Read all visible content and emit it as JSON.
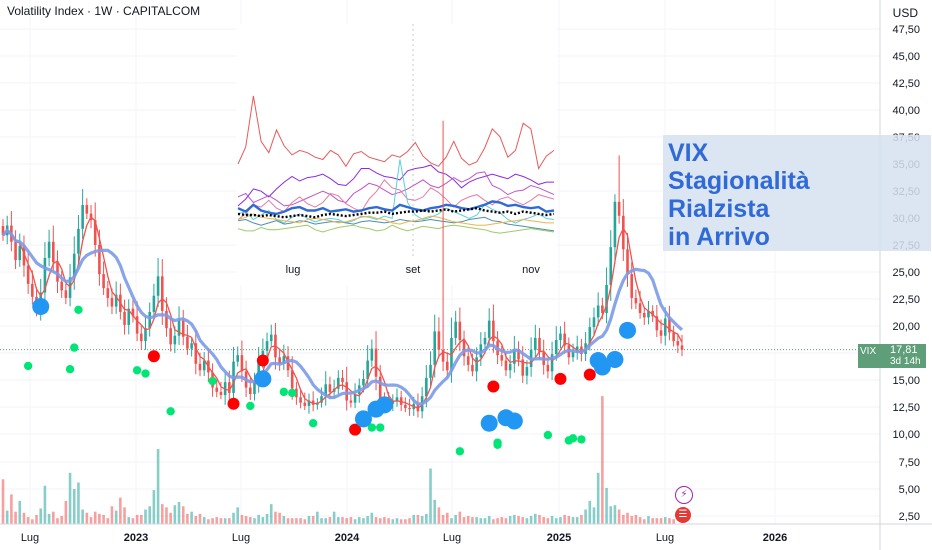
{
  "header": {
    "title": "Volatility Index · 1W · CAPITALCOM",
    "currency": "USD"
  },
  "overlay": {
    "title_lines": [
      "VIX",
      "Stagionalità",
      "Rialzista",
      "in Arrivo"
    ]
  },
  "price_tag": {
    "symbol": "VIX",
    "value": "17,81",
    "countdown": "3d 14h"
  },
  "icons": {
    "event": "lightning-icon",
    "flag": "us-flag-icon"
  },
  "colors": {
    "up": "#26a69a",
    "down": "#ef5350",
    "ma_fast": "#ef5350",
    "ma_slow": "#7b9be8",
    "green_dot": "#00e676",
    "red_dot": "#ff0000",
    "blue_dot": "#2196f3"
  },
  "chart_data": {
    "type": "candlestick",
    "y_ticks": [
      "47,50",
      "45,00",
      "42,50",
      "40,00",
      "37,50",
      "35,00",
      "32,50",
      "30,00",
      "27,50",
      "25,00",
      "22,50",
      "20,00",
      "17,50",
      "15,00",
      "12,50",
      "10,00",
      "7,50",
      "5,00",
      "2,50"
    ],
    "x_ticks": [
      {
        "label": "Lug",
        "bold": false
      },
      {
        "label": "2023",
        "bold": true
      },
      {
        "label": "Lug",
        "bold": false
      },
      {
        "label": "2024",
        "bold": true
      },
      {
        "label": "Lug",
        "bold": false
      },
      {
        "label": "2025",
        "bold": true
      },
      {
        "label": "Lug",
        "bold": false
      },
      {
        "label": "2026",
        "bold": true
      }
    ],
    "ylim": [
      1.5,
      48
    ],
    "last_price": 17.81,
    "closes": [
      28.4,
      29.3,
      27.8,
      26.1,
      27.4,
      25.6,
      23.9,
      22.7,
      21.5,
      23.1,
      26.3,
      27.8,
      25.9,
      24.1,
      23.3,
      22.6,
      24.5,
      26.7,
      29.0,
      31.2,
      30.4,
      29.8,
      27.5,
      24.8,
      23.5,
      22.6,
      21.8,
      22.9,
      21.3,
      20.1,
      21.6,
      20.9,
      19.3,
      18.6,
      19.8,
      21.3,
      22.8,
      24.6,
      21.4,
      19.8,
      18.3,
      19.1,
      20.5,
      19.0,
      17.9,
      18.4,
      16.5,
      15.9,
      16.8,
      15.7,
      14.3,
      13.9,
      13.6,
      14.8,
      13.8,
      16.7,
      17.3,
      15.8,
      14.3,
      13.7,
      14.9,
      16.8,
      17.7,
      18.6,
      19.2,
      17.1,
      16.5,
      17.2,
      15.9,
      14.2,
      13.4,
      12.9,
      12.6,
      13.1,
      12.7,
      12.9,
      13.5,
      14.6,
      13.9,
      14.2,
      15.2,
      14.8,
      13.1,
      12.9,
      13.7,
      14.5,
      15.1,
      16.8,
      17.9,
      15.3,
      13.2,
      13.0,
      12.8,
      13.1,
      13.4,
      12.7,
      12.4,
      12.3,
      12.8,
      12.1,
      13.5,
      15.2,
      16.4,
      19.5,
      17.8,
      16.7,
      15.9,
      18.9,
      20.4,
      18.7,
      17.2,
      16.4,
      15.8,
      17.1,
      18.3,
      18.9,
      20.5,
      18.6,
      17.3,
      16.8,
      15.9,
      16.5,
      17.8,
      16.9,
      15.4,
      16.2,
      17.8,
      18.9,
      17.6,
      16.4,
      15.8,
      17.4,
      18.7,
      19.3,
      18.2,
      17.1,
      17.6,
      18.1,
      17.4,
      18.4,
      19.9,
      20.8,
      21.9,
      21.2,
      23.8,
      27.3,
      31.5,
      30.2,
      27.1,
      24.8,
      22.6,
      22.1,
      21.2,
      20.8,
      21.4,
      20.9,
      19.6,
      19.1,
      20.7,
      19.4,
      18.6,
      18.2,
      17.81
    ],
    "volume": [
      5.9,
      3.0,
      4.5,
      2.9,
      3.9,
      2.8,
      2.4,
      2.2,
      2.6,
      3.2,
      5.3,
      2.7,
      2.9,
      2.3,
      2.5,
      3.9,
      6.5,
      5.0,
      5.6,
      3.1,
      2.8,
      2.4,
      2.9,
      2.7,
      2.6,
      2.3,
      3.4,
      3.0,
      4.2,
      3.3,
      2.4,
      2.3,
      2.6,
      2.6,
      3.1,
      3.4,
      4.9,
      8.7,
      3.6,
      3.3,
      2.8,
      3.5,
      3.8,
      3.4,
      2.7,
      2.9,
      2.5,
      2.7,
      2.4,
      2.2,
      2.3,
      2.4,
      2.3,
      2.3,
      2.3,
      2.8,
      3.3,
      2.6,
      2.5,
      2.4,
      2.3,
      2.6,
      2.4,
      2.7,
      3.6,
      2.9,
      2.8,
      2.5,
      2.3,
      2.3,
      2.3,
      2.3,
      2.2,
      2.5,
      2.5,
      2.9,
      2.3,
      2.3,
      2.4,
      2.9,
      2.4,
      2.4,
      2.3,
      2.4,
      2.2,
      2.4,
      2.3,
      2.5,
      2.8,
      2.4,
      2.3,
      2.4,
      2.3,
      2.2,
      2.3,
      2.2,
      2.2,
      2.3,
      2.6,
      2.6,
      2.5,
      2.7,
      6.9,
      4.0,
      3.3,
      2.6,
      2.8,
      2.3,
      2.6,
      2.9,
      2.4,
      2.5,
      2.4,
      2.4,
      2.3,
      2.3,
      2.5,
      2.2,
      2.3,
      2.4,
      2.3,
      2.5,
      2.6,
      2.5,
      2.4,
      2.3,
      2.5,
      2.7,
      2.6,
      2.4,
      2.3,
      2.5,
      2.3,
      2.4,
      2.6,
      2.5,
      2.4,
      2.4,
      2.6,
      3.1,
      3.9,
      3.3,
      6.5,
      13.6,
      5.1,
      3.4,
      3.5,
      3.1,
      2.6,
      2.8,
      2.5,
      2.6,
      2.4,
      2.2,
      2.5,
      2.3,
      2.3,
      2.3,
      2.4,
      2.3,
      2.2
    ],
    "green_dots": [
      [
        6,
        16.3
      ],
      [
        16,
        16.0
      ],
      [
        17,
        18.0
      ],
      [
        18,
        21.5
      ],
      [
        32,
        15.9
      ],
      [
        34,
        15.6
      ],
      [
        40,
        12.1
      ],
      [
        50,
        14.9
      ],
      [
        59,
        12.6
      ],
      [
        67,
        13.9
      ],
      [
        69,
        13.8
      ],
      [
        74,
        11.0
      ],
      [
        88,
        10.6
      ],
      [
        90,
        10.6
      ],
      [
        109,
        8.4
      ],
      [
        118,
        9.2
      ],
      [
        118,
        9.0
      ],
      [
        130,
        9.9
      ],
      [
        135,
        9.4
      ],
      [
        136,
        9.6
      ],
      [
        138,
        9.5
      ]
    ],
    "red_dots": [
      [
        36,
        17.2
      ],
      [
        55,
        12.8
      ],
      [
        62,
        16.8
      ],
      [
        84,
        10.4
      ],
      [
        117,
        14.4
      ],
      [
        133,
        15.1
      ],
      [
        140,
        15.5
      ]
    ],
    "blue_dots": [
      [
        9,
        21.8
      ],
      [
        62,
        15.1
      ],
      [
        86,
        11.4
      ],
      [
        91,
        12.7
      ],
      [
        89,
        12.3
      ],
      [
        116,
        11.0
      ],
      [
        120,
        11.5
      ],
      [
        122,
        11.2
      ],
      [
        142,
        16.8
      ],
      [
        143,
        16.2
      ],
      [
        146,
        16.9
      ],
      [
        149,
        19.6
      ]
    ],
    "seasonal": {
      "x_labels": [
        "lug",
        "set",
        "nov"
      ],
      "series": [
        {
          "color": "#e85a5a",
          "values": [
            35,
            36.5,
            41,
            37,
            36,
            38,
            36.6,
            35.8,
            36.2,
            36,
            35.6,
            35.4,
            36.2,
            35.8,
            34.8,
            35.9,
            36.1,
            35.6,
            35.4,
            35.2,
            35.8,
            35.6,
            36.1,
            36.9,
            35.7,
            35.1,
            34.8,
            35.6,
            37,
            35.5,
            34.9,
            35.2,
            36.4,
            38.1,
            37.4,
            35.6,
            36.2,
            38.6,
            38.1,
            34.6,
            35.7,
            36.2
          ]
        },
        {
          "color": "#8a2be2",
          "values": [
            31.3,
            31.9,
            32.8,
            32.6,
            32.1,
            32.8,
            33.4,
            33.9,
            33.5,
            33.8,
            33.9,
            34.1,
            33.7,
            33.2,
            33.1,
            33.7,
            34.6,
            34.6,
            34.2,
            33.9,
            33.8,
            33.6,
            34.4,
            34.6,
            34.7,
            34.9,
            34.3,
            34.1,
            33.6,
            32.9,
            33.4,
            33.7,
            33.9,
            34.1,
            33.9,
            33.7,
            34.1,
            33.9,
            33.6,
            33.2,
            33.4,
            33.4
          ]
        },
        {
          "color": "#c054c9",
          "values": [
            32.1,
            32.4,
            31.6,
            31.9,
            32.2,
            31.8,
            31.3,
            31.4,
            31.7,
            32,
            32.3,
            32.6,
            32.3,
            31.8,
            31.6,
            32.4,
            32.8,
            33.3,
            33.1,
            32.7,
            32.3,
            32.5,
            32.8,
            33.2,
            33.6,
            33.1,
            32.9,
            33.3,
            33.8,
            33.4,
            33.7,
            34.2,
            34.3,
            33.1,
            32.8,
            32.3,
            32.6,
            32.7,
            33.1,
            32.9,
            32.6,
            32.3
          ]
        },
        {
          "color": "#e87ba1",
          "values": [
            30.1,
            30.6,
            31.4,
            31.2,
            31.8,
            31.1,
            30.8,
            31.6,
            32.1,
            31.5,
            31.2,
            31.6,
            32.4,
            32.2,
            31.5,
            31.1,
            30.8,
            31.9,
            32.6,
            33.6,
            32.9,
            32.7,
            31.9,
            31.8,
            32.1,
            32.9,
            32.5,
            31.9,
            31.2,
            31.8,
            32.1,
            32.3,
            31.8,
            31.4,
            31.9,
            32.1,
            31.7,
            31.4,
            31.8,
            32.3,
            32.1,
            31.9
          ]
        },
        {
          "color": "#5ad0e0",
          "values": [
            30.6,
            30.8,
            30.1,
            30.5,
            30.9,
            30.1,
            29.8,
            30.3,
            30.6,
            30.2,
            29.9,
            30.1,
            30.2,
            30.1,
            29.8,
            30,
            30.4,
            30.3,
            30.1,
            30.4,
            30.2,
            35.4,
            31.6,
            30.5,
            30.1,
            30.3,
            30.6,
            31.1,
            30.8,
            30.5,
            30.2,
            30.5,
            31.4,
            31,
            30.7,
            30.1,
            29.8,
            30.1,
            30.3,
            30.6,
            30.2,
            30.1
          ]
        },
        {
          "color": "#2f6ad6",
          "values": [
            31.1,
            30.8,
            31.4,
            30.9,
            30.7,
            30.6,
            30.8,
            31.1,
            31.2,
            30.9,
            30.9,
            31.1,
            30.8,
            30.9,
            31,
            30.8,
            30.9,
            31.1,
            31.2,
            31,
            30.9,
            31.4,
            31.2,
            31,
            30.9,
            31.1,
            31.2,
            31.4,
            31.3,
            31.1,
            31,
            31.2,
            31.4,
            31.7,
            31.6,
            31.3,
            31.4,
            31.2,
            31.1,
            31.2,
            30.8,
            30.9
          ]
        },
        {
          "color": "#4a8fb0",
          "values": [
            30,
            30.1,
            29.8,
            29.6,
            29.8,
            30,
            29.7,
            29.8,
            30,
            29.9,
            29.7,
            29.8,
            29.9,
            29.9,
            29.8,
            29.7,
            29.9,
            30,
            29.9,
            29.8,
            29.9,
            30.1,
            30,
            29.9,
            30,
            30.1,
            30,
            29.9,
            29.8,
            29.9,
            30.1,
            30.2,
            30.3,
            30,
            29.9,
            29.7,
            29.6,
            29.5,
            29.4,
            29.3,
            29.2,
            29.1
          ]
        },
        {
          "color": "#9ccc65",
          "values": [
            29.3,
            29.1,
            29.1,
            29.4,
            29.2,
            29.2,
            29.3,
            29.4,
            29.5,
            29.6,
            29.2,
            29,
            29.2,
            29.4,
            29.5,
            29.6,
            29.4,
            29.3,
            29.1,
            29.2,
            29.6,
            29.3,
            29.1,
            29.3,
            29.5,
            29.4,
            29.3,
            29.5,
            29.6,
            29.5,
            29.4,
            29.3,
            29.2,
            29,
            28.9,
            29,
            29.1,
            29.2,
            29.3,
            29.2,
            29.1,
            29
          ]
        },
        {
          "color": "#f0b24c",
          "values": [
            30.1,
            30.3,
            30.6,
            30.3,
            30.2,
            30.1,
            30,
            29.9,
            29.8,
            30.1,
            30.2,
            30.1,
            30,
            29.8,
            29.9,
            30.1,
            30.3,
            30.4,
            30.2,
            30.1,
            29.8,
            29.7,
            29.9,
            30,
            30.2,
            30.4,
            30.3,
            30.1,
            29.9,
            29.8,
            29.7,
            29.6,
            29.6,
            29.7,
            29.8,
            29.9,
            30,
            30.1,
            30,
            29.9,
            29.8,
            29.8
          ]
        },
        {
          "color": "#000000",
          "values": [
            30.6,
            30.5,
            30.5,
            30.4,
            30.5,
            30.4,
            30.3,
            30.4,
            30.5,
            30.4,
            30.3,
            30.5,
            30.6,
            30.5,
            30.4,
            30.5,
            30.6,
            30.7,
            30.7,
            30.8,
            30.6,
            30.7,
            30.8,
            30.8,
            30.9,
            30.8,
            30.9,
            31,
            30.8,
            30.9,
            31,
            31.1,
            30.9,
            30.8,
            30.7,
            30.8,
            30.6,
            30.8,
            30.7,
            30.6,
            30.5,
            30.6
          ]
        }
      ]
    }
  }
}
